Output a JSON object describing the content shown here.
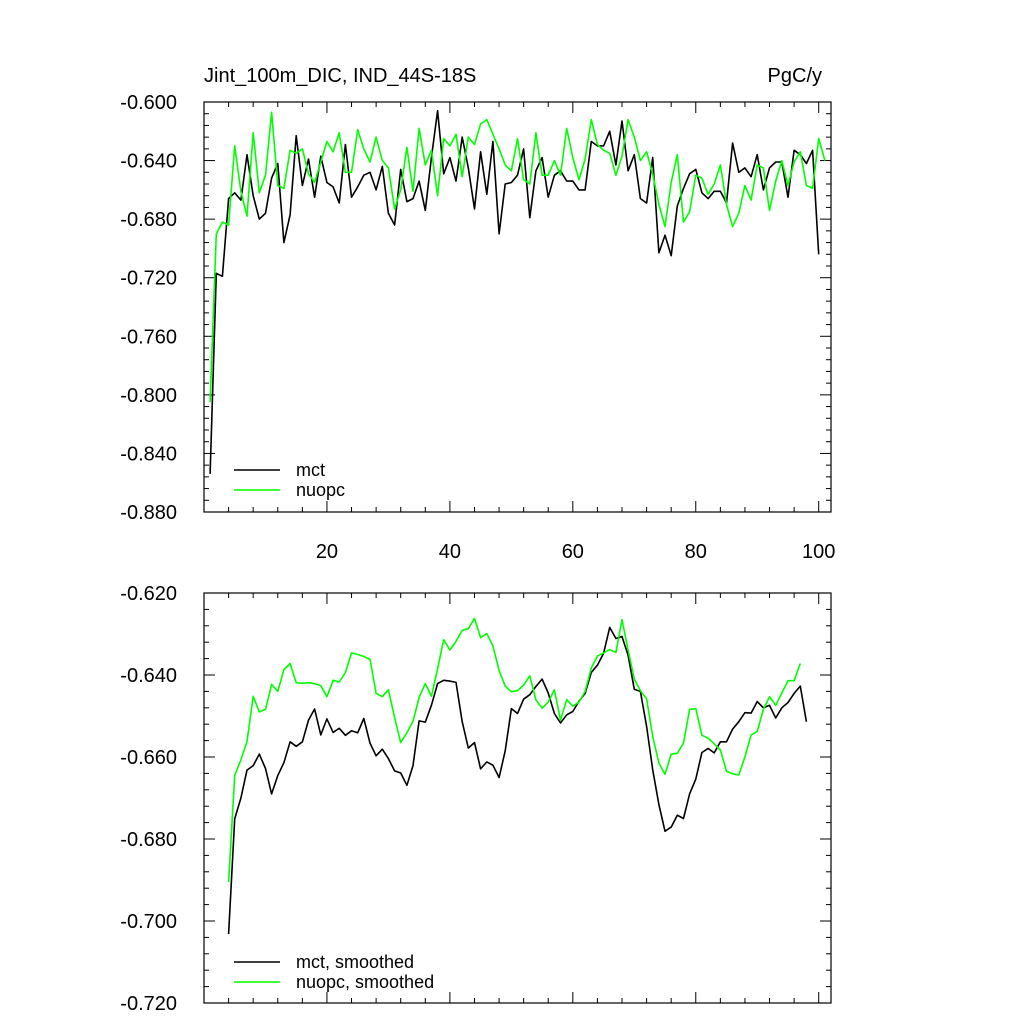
{
  "header": {
    "left_title": "Jint_100m_DIC, IND_44S-18S",
    "right_title": "PgC/y"
  },
  "chart_data": [
    {
      "type": "line",
      "xlim": [
        0,
        102
      ],
      "ylim": [
        -0.88,
        -0.6
      ],
      "x_ticks": [
        20,
        40,
        60,
        80,
        100
      ],
      "x_tick_labels": [
        "20",
        "40",
        "60",
        "80",
        "100"
      ],
      "y_ticks": [
        -0.6,
        -0.64,
        -0.68,
        -0.72,
        -0.76,
        -0.8,
        -0.84,
        -0.88
      ],
      "y_tick_labels": [
        "-0.600",
        "-0.640",
        "-0.680",
        "-0.720",
        "-0.760",
        "-0.800",
        "-0.840",
        "-0.880"
      ],
      "legend_position": "bottom-left",
      "series": [
        {
          "name": "mct",
          "color": "#000000",
          "x_start": 1,
          "values": [
            -0.854,
            -0.717,
            -0.719,
            -0.666,
            -0.662,
            -0.667,
            -0.636,
            -0.664,
            -0.68,
            -0.676,
            -0.652,
            -0.642,
            -0.696,
            -0.677,
            -0.623,
            -0.657,
            -0.639,
            -0.665,
            -0.637,
            -0.655,
            -0.658,
            -0.669,
            -0.629,
            -0.665,
            -0.658,
            -0.65,
            -0.648,
            -0.66,
            -0.644,
            -0.676,
            -0.684,
            -0.646,
            -0.668,
            -0.666,
            -0.654,
            -0.674,
            -0.638,
            -0.606,
            -0.649,
            -0.638,
            -0.654,
            -0.624,
            -0.645,
            -0.673,
            -0.634,
            -0.663,
            -0.627,
            -0.69,
            -0.656,
            -0.655,
            -0.65,
            -0.632,
            -0.679,
            -0.647,
            -0.638,
            -0.665,
            -0.65,
            -0.647,
            -0.654,
            -0.654,
            -0.66,
            -0.66,
            -0.627,
            -0.63,
            -0.63,
            -0.62,
            -0.643,
            -0.613,
            -0.647,
            -0.636,
            -0.666,
            -0.669,
            -0.638,
            -0.703,
            -0.691,
            -0.705,
            -0.671,
            -0.659,
            -0.649,
            -0.646,
            -0.662,
            -0.666,
            -0.661,
            -0.661,
            -0.669,
            -0.628,
            -0.648,
            -0.645,
            -0.651,
            -0.636,
            -0.66,
            -0.645,
            -0.641,
            -0.641,
            -0.665,
            -0.633,
            -0.636,
            -0.642,
            -0.633,
            -0.704
          ]
        },
        {
          "name": "nuopc",
          "color": "#00ff00",
          "x_start": 1,
          "values": [
            -0.805,
            -0.69,
            -0.682,
            -0.684,
            -0.63,
            -0.661,
            -0.678,
            -0.621,
            -0.662,
            -0.65,
            -0.607,
            -0.657,
            -0.659,
            -0.633,
            -0.635,
            -0.632,
            -0.649,
            -0.655,
            -0.641,
            -0.627,
            -0.634,
            -0.621,
            -0.648,
            -0.648,
            -0.619,
            -0.632,
            -0.641,
            -0.624,
            -0.64,
            -0.645,
            -0.673,
            -0.66,
            -0.631,
            -0.661,
            -0.618,
            -0.643,
            -0.633,
            -0.664,
            -0.625,
            -0.63,
            -0.622,
            -0.651,
            -0.624,
            -0.629,
            -0.615,
            -0.612,
            -0.622,
            -0.632,
            -0.643,
            -0.647,
            -0.625,
            -0.653,
            -0.656,
            -0.621,
            -0.65,
            -0.65,
            -0.64,
            -0.65,
            -0.618,
            -0.638,
            -0.653,
            -0.639,
            -0.612,
            -0.629,
            -0.633,
            -0.635,
            -0.65,
            -0.637,
            -0.612,
            -0.624,
            -0.64,
            -0.634,
            -0.649,
            -0.67,
            -0.685,
            -0.655,
            -0.636,
            -0.682,
            -0.675,
            -0.65,
            -0.652,
            -0.663,
            -0.656,
            -0.643,
            -0.67,
            -0.685,
            -0.676,
            -0.657,
            -0.667,
            -0.643,
            -0.645,
            -0.674,
            -0.654,
            -0.64,
            -0.657,
            -0.641,
            -0.634,
            -0.657,
            -0.659,
            -0.625,
            -0.64
          ]
        }
      ]
    },
    {
      "type": "line",
      "xlim": [
        0,
        102
      ],
      "ylim": [
        -0.72,
        -0.62
      ],
      "x_ticks": [
        20,
        40,
        60,
        80,
        100
      ],
      "x_tick_labels": [],
      "y_ticks": [
        -0.62,
        -0.64,
        -0.66,
        -0.68,
        -0.7,
        -0.72
      ],
      "y_tick_labels": [
        "-0.620",
        "-0.640",
        "-0.660",
        "-0.680",
        "-0.700",
        "-0.720"
      ],
      "legend_position": "bottom-left",
      "series": [
        {
          "name": "mct, smoothed",
          "color": "#000000",
          "x_start": 4,
          "values": [
            -0.7032,
            -0.6751,
            -0.67,
            -0.6632,
            -0.6621,
            -0.6593,
            -0.6628,
            -0.669,
            -0.6645,
            -0.6614,
            -0.6563,
            -0.6574,
            -0.6563,
            -0.651,
            -0.6483,
            -0.6546,
            -0.6507,
            -0.654,
            -0.653,
            -0.6547,
            -0.6536,
            -0.6541,
            -0.6506,
            -0.6566,
            -0.6597,
            -0.6581,
            -0.6604,
            -0.6634,
            -0.6639,
            -0.6669,
            -0.6621,
            -0.6512,
            -0.6515,
            -0.6474,
            -0.6421,
            -0.6413,
            -0.6415,
            -0.6418,
            -0.6514,
            -0.6578,
            -0.6565,
            -0.6629,
            -0.6612,
            -0.662,
            -0.665,
            -0.6585,
            -0.6482,
            -0.6494,
            -0.6459,
            -0.6448,
            -0.6428,
            -0.641,
            -0.6444,
            -0.6494,
            -0.6517,
            -0.6497,
            -0.6489,
            -0.6464,
            -0.6445,
            -0.6394,
            -0.6376,
            -0.6347,
            -0.6284,
            -0.6311,
            -0.6306,
            -0.6352,
            -0.6435,
            -0.644,
            -0.6525,
            -0.6631,
            -0.6716,
            -0.6781,
            -0.6771,
            -0.6742,
            -0.675,
            -0.669,
            -0.6654,
            -0.6589,
            -0.6579,
            -0.659,
            -0.6563,
            -0.6563,
            -0.6532,
            -0.6514,
            -0.6492,
            -0.6493,
            -0.6465,
            -0.648,
            -0.6474,
            -0.6505,
            -0.648,
            -0.6467,
            -0.6445,
            -0.6427,
            -0.6514
          ]
        },
        {
          "name": "nuopc, smoothed",
          "color": "#00ff00",
          "x_start": 4,
          "values": [
            -0.6905,
            -0.6645,
            -0.6607,
            -0.6562,
            -0.6452,
            -0.649,
            -0.6484,
            -0.6423,
            -0.644,
            -0.6387,
            -0.6372,
            -0.6419,
            -0.642,
            -0.6419,
            -0.6421,
            -0.6426,
            -0.6453,
            -0.6413,
            -0.6417,
            -0.6394,
            -0.6346,
            -0.635,
            -0.6355,
            -0.6362,
            -0.6445,
            -0.6453,
            -0.6436,
            -0.6504,
            -0.6565,
            -0.6541,
            -0.6513,
            -0.6455,
            -0.6421,
            -0.6452,
            -0.6385,
            -0.6314,
            -0.6339,
            -0.6318,
            -0.6291,
            -0.6287,
            -0.6262,
            -0.6309,
            -0.6299,
            -0.6329,
            -0.6389,
            -0.6427,
            -0.6441,
            -0.6438,
            -0.6425,
            -0.6402,
            -0.6461,
            -0.6481,
            -0.6466,
            -0.6436,
            -0.651,
            -0.646,
            -0.6476,
            -0.6466,
            -0.644,
            -0.6383,
            -0.6354,
            -0.6346,
            -0.6338,
            -0.6345,
            -0.6265,
            -0.6339,
            -0.641,
            -0.6438,
            -0.6458,
            -0.655,
            -0.6615,
            -0.6642,
            -0.6593,
            -0.6591,
            -0.6566,
            -0.6484,
            -0.6482,
            -0.6547,
            -0.6554,
            -0.6568,
            -0.6583,
            -0.6635,
            -0.6641,
            -0.6644,
            -0.66,
            -0.6546,
            -0.6538,
            -0.6484,
            -0.6453,
            -0.6474,
            -0.6444,
            -0.6414,
            -0.6414,
            -0.6372
          ]
        }
      ]
    }
  ]
}
